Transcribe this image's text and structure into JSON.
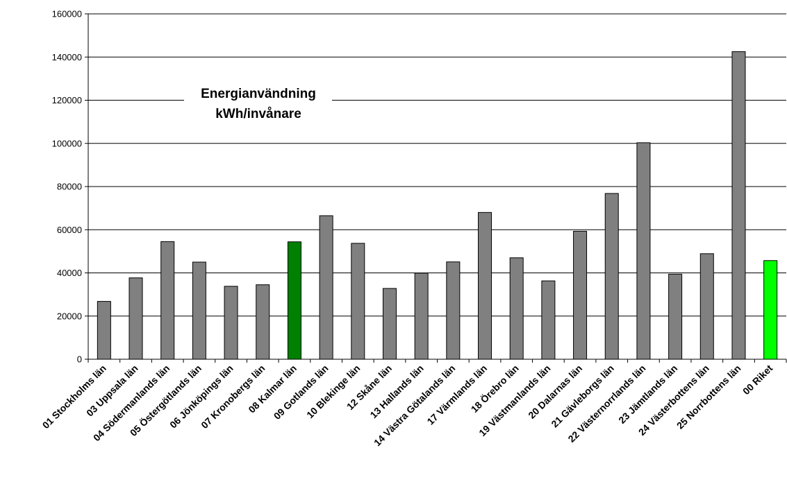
{
  "chart_data": {
    "type": "bar",
    "title": "Energianvändning kWh/invånare",
    "title_lines": [
      "Energianvändning",
      "kWh/invånare"
    ],
    "xlabel": "",
    "ylabel": "",
    "ylim": [
      0,
      160000
    ],
    "yticks": [
      0,
      20000,
      40000,
      60000,
      80000,
      100000,
      120000,
      140000,
      160000
    ],
    "grid": true,
    "legend": "none",
    "categories": [
      "01 Stockholms län",
      "03 Uppsala län",
      "04 Södermanlands län",
      "05 Östergötlands län",
      "06 Jönköpings län",
      "07 Kronobergs län",
      "08 Kalmar län",
      "09 Gotlands län",
      "10 Blekinge län",
      "12 Skåne län",
      "13 Hallands län",
      "14 Västra Götalands län",
      "17 Värmlands län",
      "18 Örebro län",
      "19 Västmanlands län",
      "20 Dalarnas län",
      "21 Gävleborgs län",
      "22 Västernorrlands län",
      "23 Jämtlands län",
      "24 Västerbottens län",
      "25 Norrbottens län",
      "00 Riket"
    ],
    "values": [
      26800,
      37700,
      54500,
      45000,
      33800,
      34500,
      54400,
      66500,
      53700,
      32800,
      39900,
      45100,
      68000,
      47000,
      36300,
      59300,
      76800,
      100300,
      39400,
      48900,
      142500,
      45700
    ],
    "bar_colors": [
      "#808080",
      "#808080",
      "#808080",
      "#808080",
      "#808080",
      "#808080",
      "#008000",
      "#808080",
      "#808080",
      "#808080",
      "#808080",
      "#808080",
      "#808080",
      "#808080",
      "#808080",
      "#808080",
      "#808080",
      "#808080",
      "#808080",
      "#808080",
      "#808080",
      "#00ff00"
    ]
  }
}
